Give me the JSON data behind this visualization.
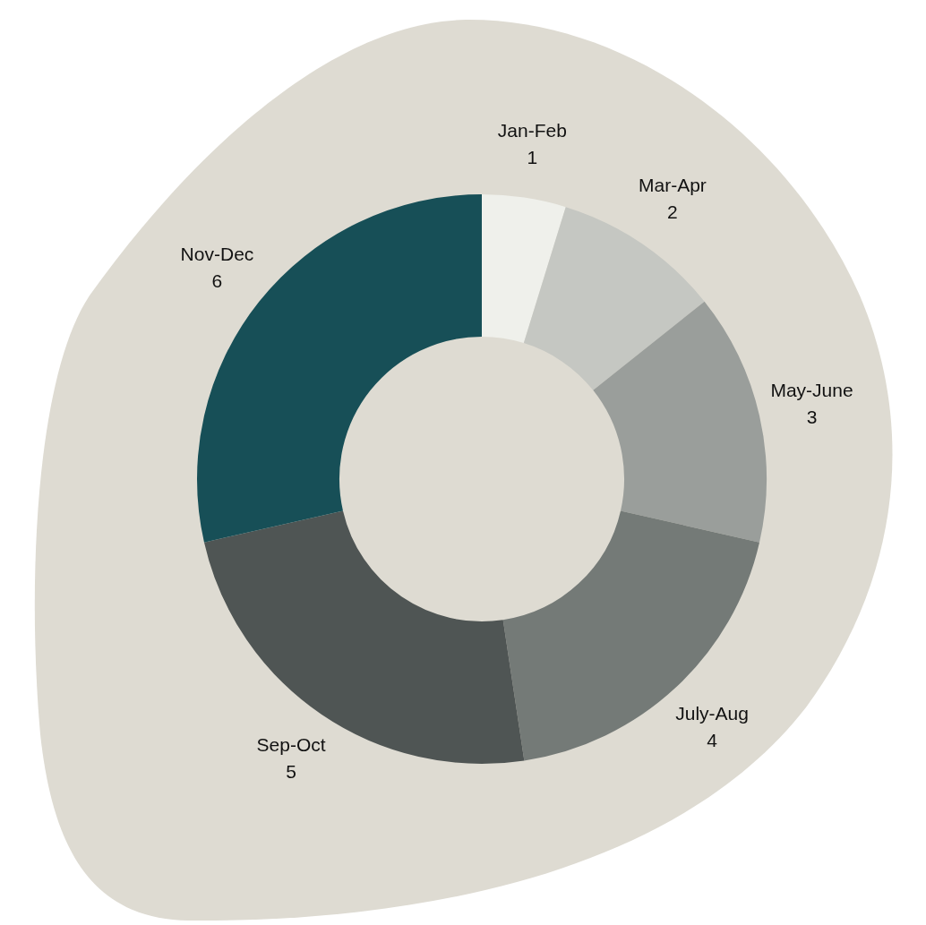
{
  "chart_data": {
    "type": "donut",
    "categories": [
      "Jan-Feb",
      "Mar-Apr",
      "May-June",
      "July-Aug",
      "Sep-Oct",
      "Nov-Dec"
    ],
    "values": [
      1,
      2,
      3,
      4,
      5,
      6
    ],
    "colors": [
      "#eff0eb",
      "#c5c7c2",
      "#9a9e9b",
      "#747a77",
      "#4f5554",
      "#174f57"
    ],
    "data_labels": true,
    "legend": false
  }
}
